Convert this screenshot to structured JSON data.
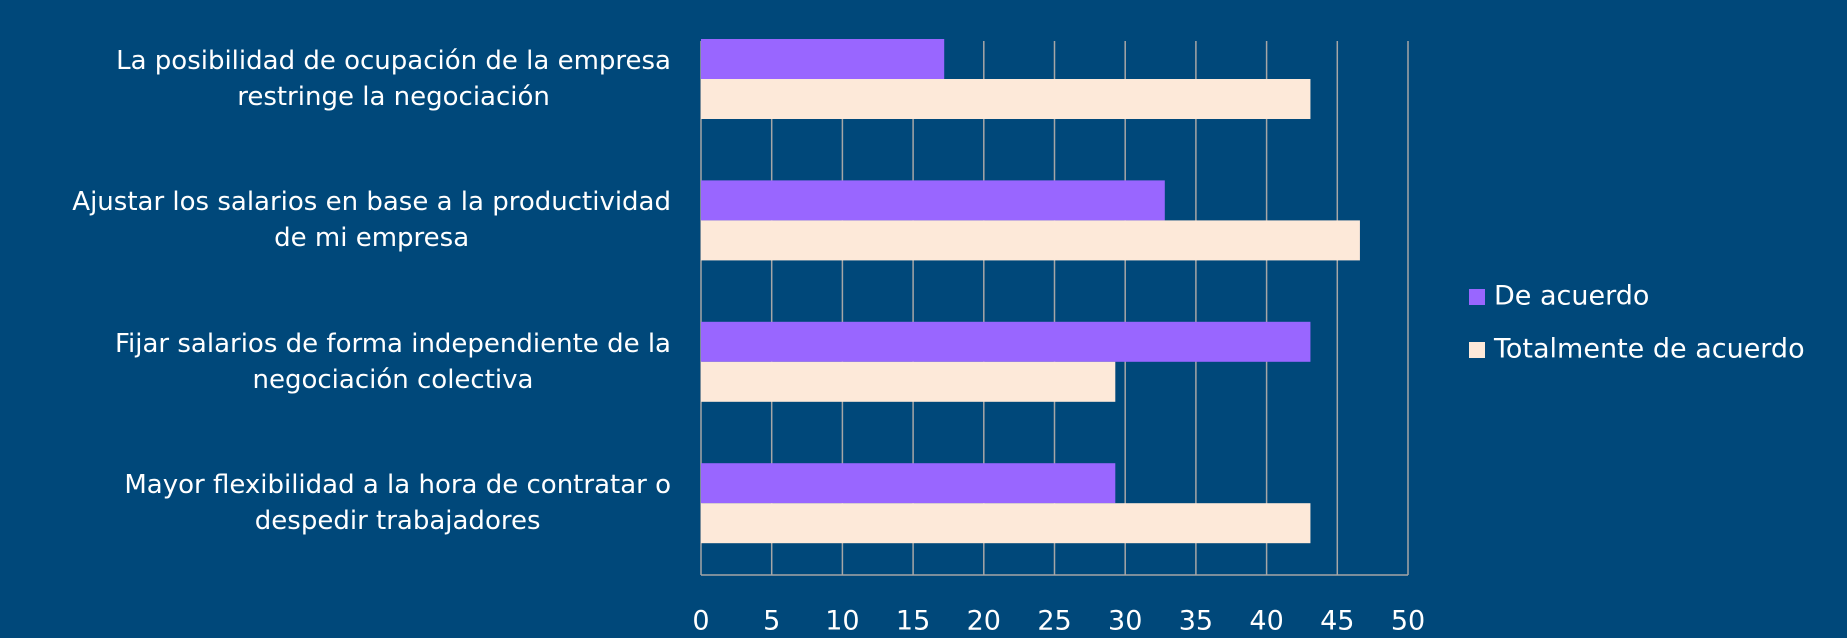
{
  "chart_data": {
    "type": "hbar",
    "categories": [
      "La posibilidad de ocupación de la empresa\nrestringe la negociación",
      "Ajustar los salarios en base a la productividad\nde mi empresa",
      "Fijar salarios de forma independiente de la\nnegociación colectiva",
      "Mayor flexibilidad a la hora de contratar o\ndespedir trabajadores"
    ],
    "series": [
      {
        "name": "De acuerdo",
        "color": "#9966ff",
        "values": [
          17.2,
          32.8,
          43.1,
          29.3
        ]
      },
      {
        "name": "Totalmente de acuerdo",
        "color": "#fde9d9",
        "values": [
          43.1,
          46.6,
          29.3,
          43.1
        ]
      }
    ],
    "xlim": [
      0,
      50
    ],
    "xticks": [
      0,
      5,
      10,
      15,
      20,
      25,
      30,
      35,
      40,
      45,
      50
    ],
    "grid": true,
    "legend": "right"
  }
}
